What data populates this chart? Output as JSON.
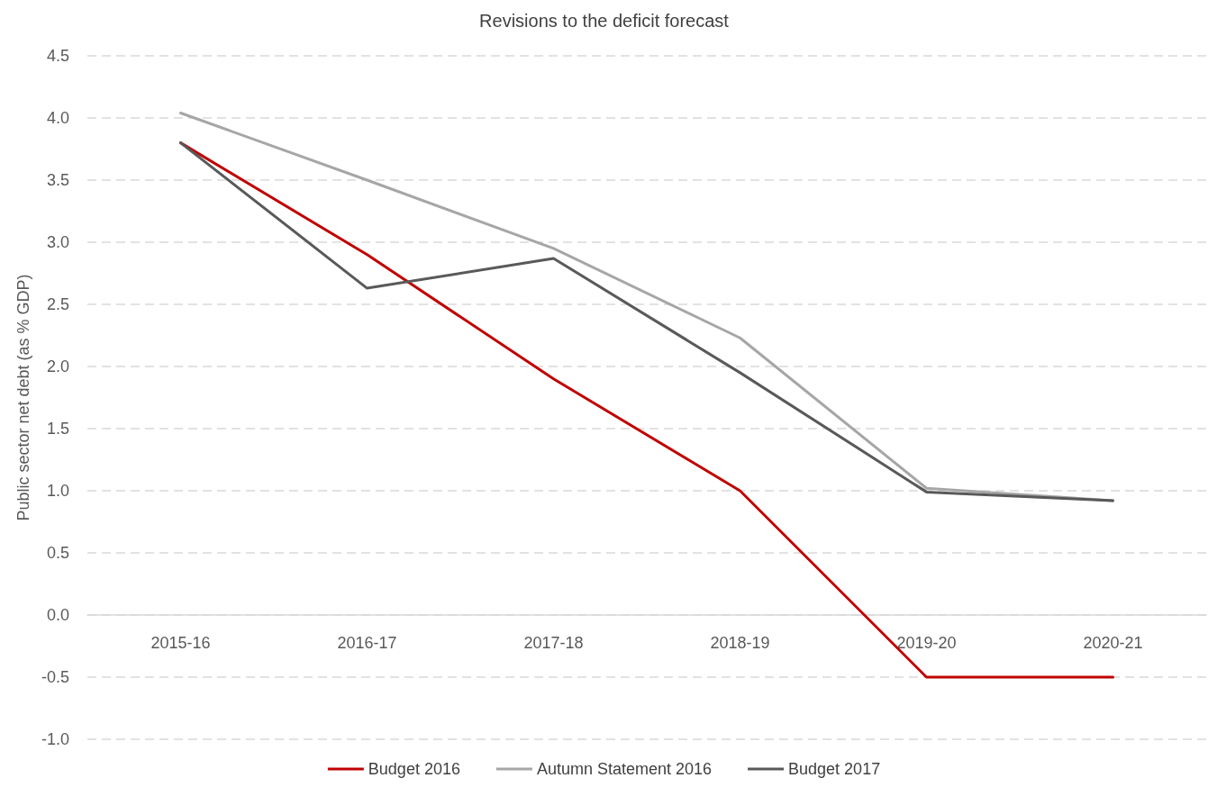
{
  "chart_data": {
    "type": "line",
    "title": "Revisions to the deficit forecast",
    "ylabel": "Public sector net debt (as % GDP)",
    "categories": [
      "2015-16",
      "2016-17",
      "2017-18",
      "2018-19",
      "2019-20",
      "2020-21"
    ],
    "series": [
      {
        "name": "Budget 2016",
        "color": "#c00000",
        "values": [
          3.8,
          2.9,
          1.9,
          1.0,
          -0.5,
          -0.5
        ]
      },
      {
        "name": "Autumn Statement 2016",
        "color": "#a6a6a6",
        "values": [
          4.04,
          3.5,
          2.95,
          2.23,
          1.02,
          0.92
        ]
      },
      {
        "name": "Budget 2017",
        "color": "#595959",
        "values": [
          3.8,
          2.63,
          2.87,
          1.95,
          0.99,
          0.92
        ]
      }
    ],
    "ylim": [
      -1.0,
      4.5
    ],
    "yticks": [
      {
        "value": -1.0,
        "label": "-1.0"
      },
      {
        "value": -0.5,
        "label": "-0.5"
      },
      {
        "value": 0,
        "label": "0.0"
      },
      {
        "value": 0.5,
        "label": "0.5"
      },
      {
        "value": 1.0,
        "label": "1.0"
      },
      {
        "value": 1.5,
        "label": "1.5"
      },
      {
        "value": 2.0,
        "label": "2.0"
      },
      {
        "value": 2.5,
        "label": "2.5"
      },
      {
        "value": 3.0,
        "label": "3.0"
      },
      {
        "value": 3.5,
        "label": "3.5"
      },
      {
        "value": 4.0,
        "label": "4.0"
      },
      {
        "value": 4.5,
        "label": "4.5"
      }
    ],
    "grid": "y",
    "legend": "bottom",
    "marker": "none",
    "line_style": "solid"
  }
}
